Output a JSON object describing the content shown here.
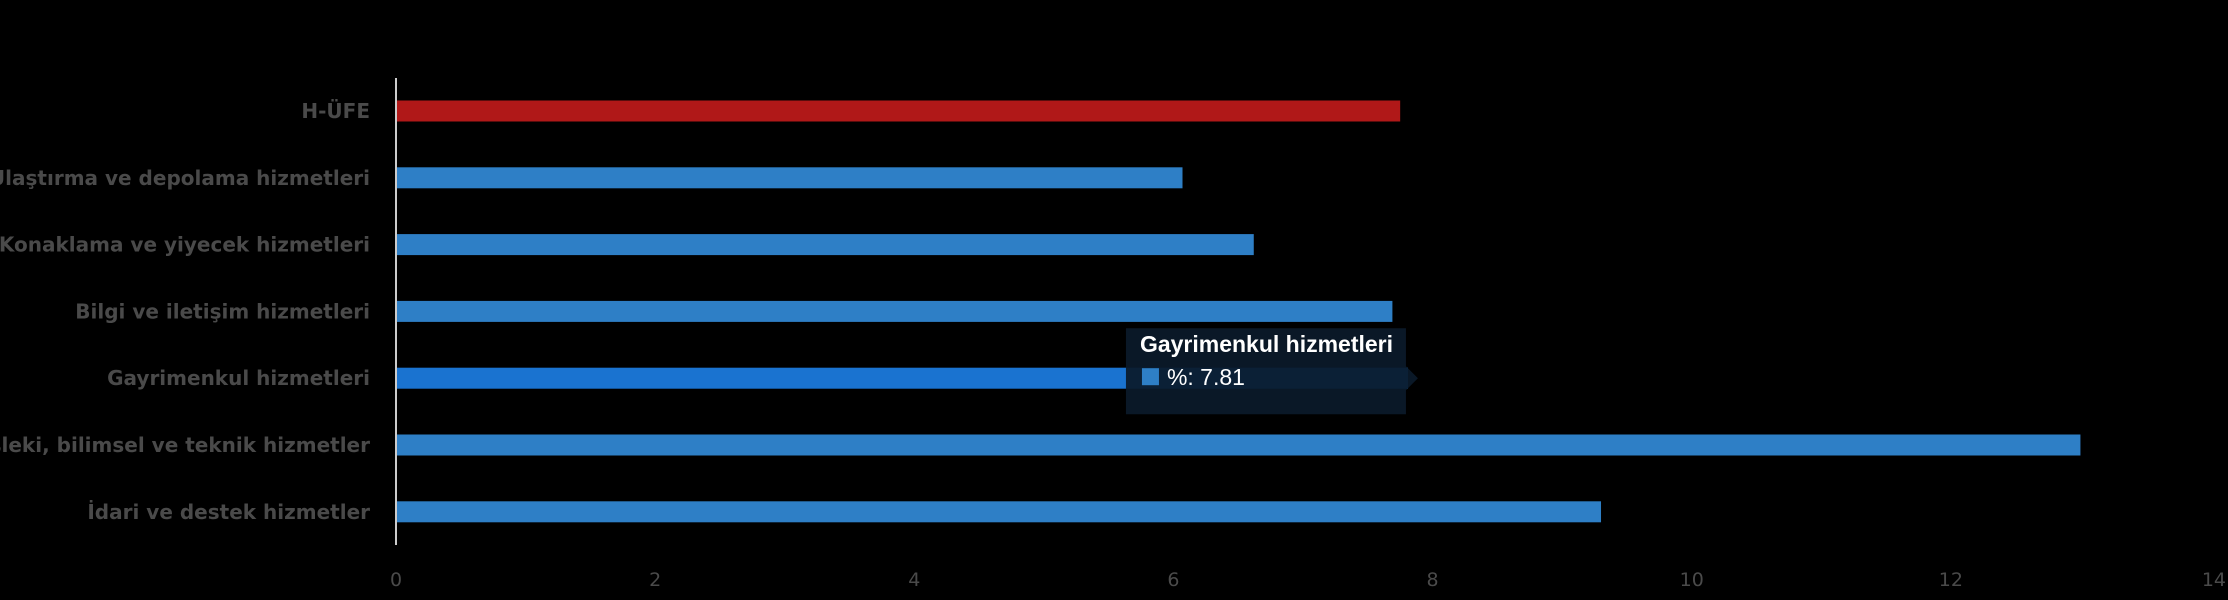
{
  "chart_data": {
    "type": "bar",
    "orientation": "horizontal",
    "categories": [
      "H-ÜFE",
      "Ulaştırma ve depolama hizmetleri",
      "Konaklama ve yiyecek hizmetleri",
      "Bilgi ve iletişim hizmetleri",
      "Gayrimenkul hizmetleri",
      "Mesleki, bilimsel ve teknik hizmetler",
      "İdari ve destek hizmetler"
    ],
    "values": [
      7.75,
      6.07,
      6.62,
      7.69,
      7.81,
      13.0,
      9.3
    ],
    "bar_colors": [
      "#b01818",
      "#2e7fc6",
      "#2e7fc6",
      "#2e7fc6",
      "#1a73d0",
      "#2e7fc6",
      "#2e7fc6"
    ],
    "xlim": [
      0,
      14
    ],
    "xticks": [
      "0",
      "2",
      "4",
      "6",
      "8",
      "10",
      "12",
      "14"
    ],
    "grid": false,
    "tooltip": {
      "category": "Gayrimenkul hizmetleri",
      "series_label": "%",
      "value_text": "7.81",
      "color": "#2e7fc6"
    }
  },
  "colors": {
    "background": "#000000",
    "axis": "#cccccc",
    "label": "#4a4a4a",
    "tooltip_bg": "#0b1a2a"
  }
}
